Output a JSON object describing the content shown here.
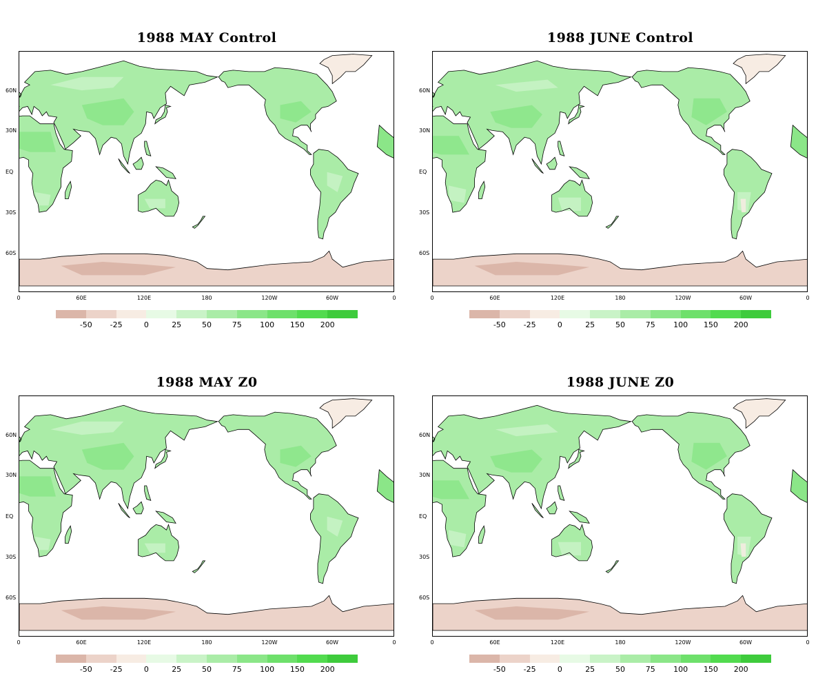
{
  "panels": [
    {
      "title": "1988 MAY Control",
      "variant": "may"
    },
    {
      "title": "1988 JUNE Control",
      "variant": "june"
    },
    {
      "title": "1988 MAY Z0",
      "variant": "may"
    },
    {
      "title": "1988 JUNE Z0",
      "variant": "june"
    }
  ],
  "lat_labels": [
    "60N",
    "30N",
    "EQ",
    "30S",
    "60S"
  ],
  "lon_labels": [
    "0",
    "60E",
    "120E",
    "180",
    "120W",
    "60W",
    "0"
  ],
  "colorbar": {
    "colors": [
      "#dbb6a9",
      "#ecd3c9",
      "#f7ece3",
      "#e7fae5",
      "#c9f3c7",
      "#aaeca7",
      "#8be688",
      "#6ee06b",
      "#52db4f",
      "#3ecb3c"
    ],
    "tick_labels": [
      "-50",
      "-25",
      "0",
      "25",
      "50",
      "75",
      "100",
      "150",
      "200"
    ]
  },
  "colors": {
    "land_low": "#aaeca7",
    "land_mid": "#8be688",
    "land_light": "#c9f3c7",
    "land_pale": "#e7fae5",
    "greenland": "#f7ece3",
    "antarctica": "#ecd3c9",
    "antarctica_dark": "#dbb6a9",
    "coast": "#000000"
  }
}
